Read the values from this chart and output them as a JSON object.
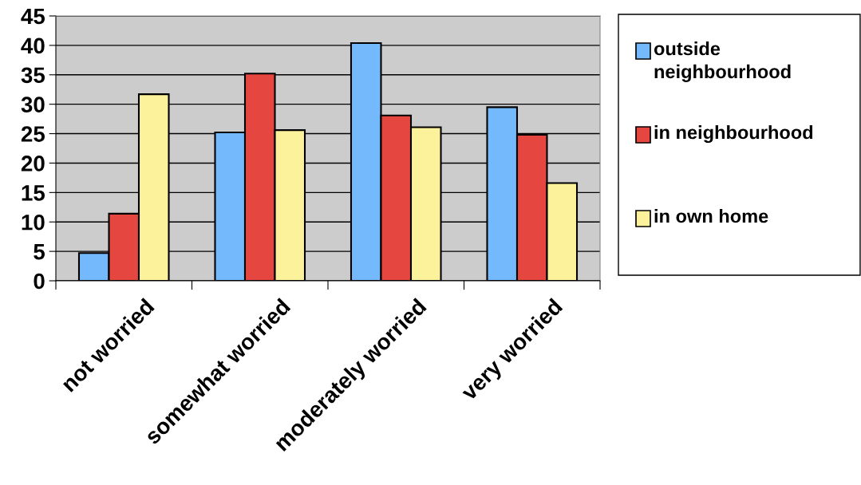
{
  "chart_data": {
    "type": "bar",
    "categories": [
      "not worried",
      "somewhat worried",
      "moderately worried",
      "very worried"
    ],
    "series": [
      {
        "name": "outside neighbourhood",
        "color": "#74b9fb",
        "values": [
          4.7,
          25.2,
          40.4,
          29.5
        ]
      },
      {
        "name": "in neighbourhood",
        "color": "#e5463f",
        "values": [
          11.4,
          35.2,
          28.1,
          24.8
        ]
      },
      {
        "name": "in own home",
        "color": "#fdf29c",
        "values": [
          31.7,
          25.6,
          26.1,
          16.6
        ]
      }
    ],
    "ylim": [
      0,
      45
    ],
    "yticks": [
      0,
      5,
      10,
      15,
      20,
      25,
      30,
      35,
      40,
      45
    ],
    "grid": "y",
    "legend": "right"
  }
}
